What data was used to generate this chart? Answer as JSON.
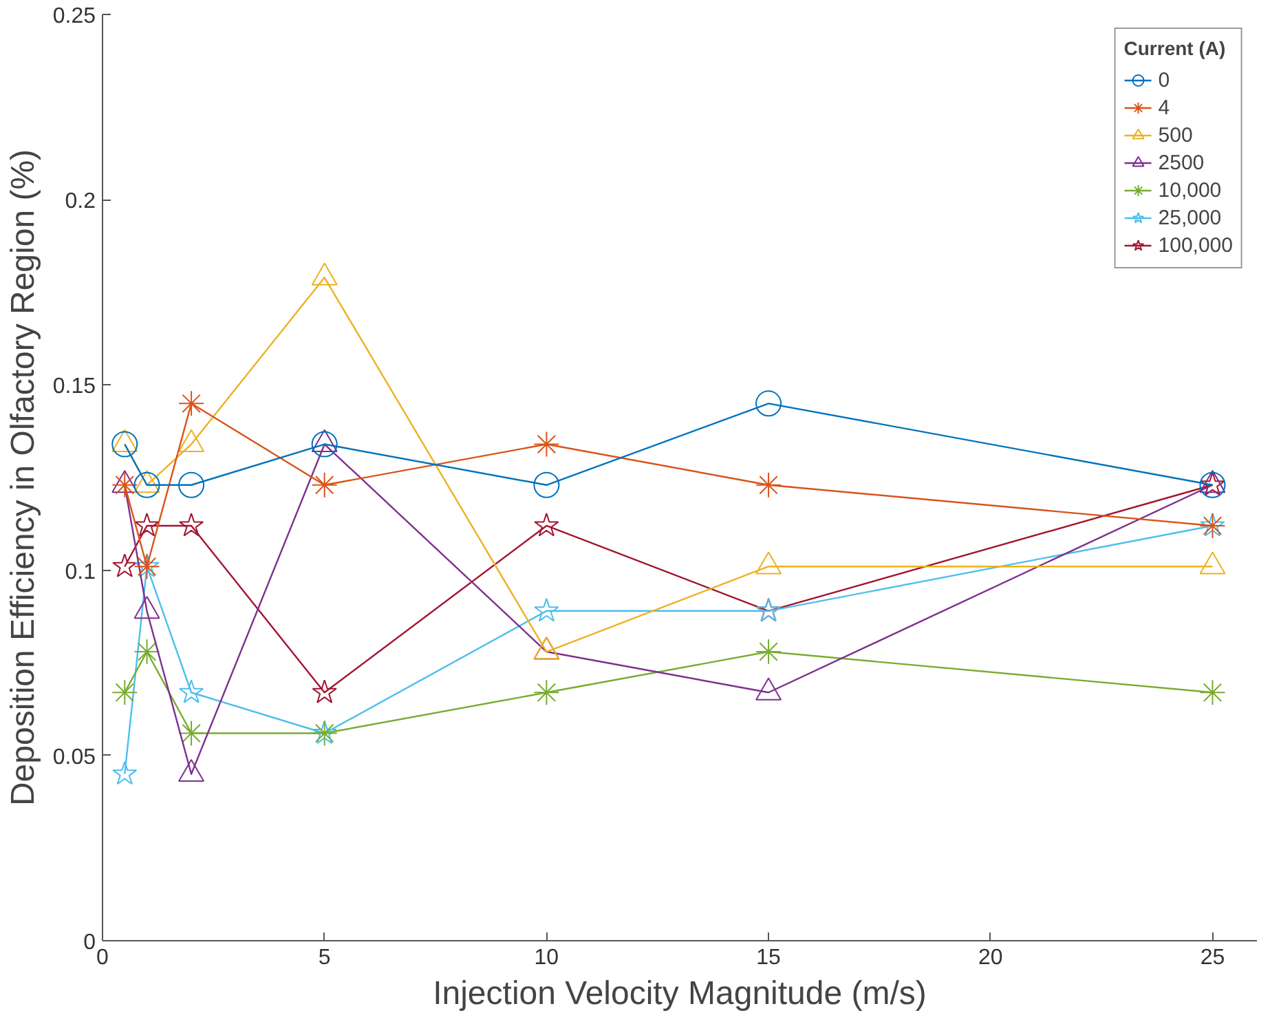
{
  "chart_data": {
    "type": "line",
    "xlabel": "Injection Velocity Magnitude (m/s)",
    "ylabel": "Deposition Efficiency in Olfactory Region (%)",
    "legend_title": "Current (A)",
    "legend": "top right",
    "grid": false,
    "x": [
      0.5,
      1,
      2,
      5,
      10,
      15,
      25
    ],
    "xlim": [
      0,
      26
    ],
    "xticks": [
      0,
      5,
      10,
      15,
      20,
      25
    ],
    "ylim": [
      0,
      0.25
    ],
    "yticks": [
      0,
      0.05,
      0.1,
      0.15,
      0.2,
      0.25
    ],
    "series": [
      {
        "name": "0",
        "color": "#0072bd",
        "marker": "circle",
        "values": [
          0.134,
          0.123,
          0.123,
          0.134,
          0.123,
          0.145,
          0.123
        ]
      },
      {
        "name": "4",
        "color": "#d95319",
        "marker": "cross",
        "values": [
          0.123,
          0.101,
          0.145,
          0.123,
          0.134,
          0.123,
          0.112
        ]
      },
      {
        "name": "500",
        "color": "#edb120",
        "marker": "triangle",
        "values": [
          0.134,
          0.123,
          0.134,
          0.179,
          0.078,
          0.101,
          0.101
        ]
      },
      {
        "name": "2500",
        "color": "#7e2f8e",
        "marker": "triangle",
        "values": [
          0.123,
          0.089,
          0.045,
          0.134,
          0.078,
          0.067,
          0.123
        ]
      },
      {
        "name": "10,000",
        "color": "#77ac30",
        "marker": "cross",
        "values": [
          0.067,
          0.078,
          0.056,
          0.056,
          0.067,
          0.078,
          0.067
        ]
      },
      {
        "name": "25,000",
        "color": "#4dbeee",
        "marker": "star",
        "values": [
          0.045,
          0.101,
          0.067,
          0.056,
          0.089,
          0.089,
          0.112
        ]
      },
      {
        "name": "100,000",
        "color": "#a2142f",
        "marker": "star",
        "values": [
          0.101,
          0.112,
          0.112,
          0.067,
          0.112,
          0.089,
          0.123
        ]
      }
    ]
  }
}
